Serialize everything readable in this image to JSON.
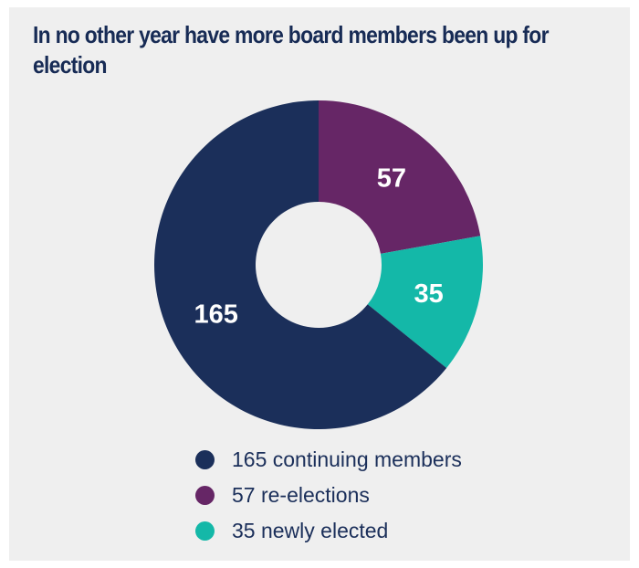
{
  "chart_data": {
    "type": "pie",
    "title": "In no other year have more board members been up for election",
    "series": [
      {
        "name": "re-elections",
        "value": 57,
        "label": "57",
        "legend": "57 re-elections",
        "color": "#662666"
      },
      {
        "name": "newly elected",
        "value": 35,
        "label": "35",
        "legend": "35 newly elected",
        "color": "#14b8a8"
      },
      {
        "name": "continuing members",
        "value": 165,
        "label": "165",
        "legend": "165 continuing members",
        "color": "#1b2f5a"
      }
    ],
    "legend_order": [
      2,
      0,
      1
    ],
    "donut": true,
    "legend_position": "bottom"
  }
}
